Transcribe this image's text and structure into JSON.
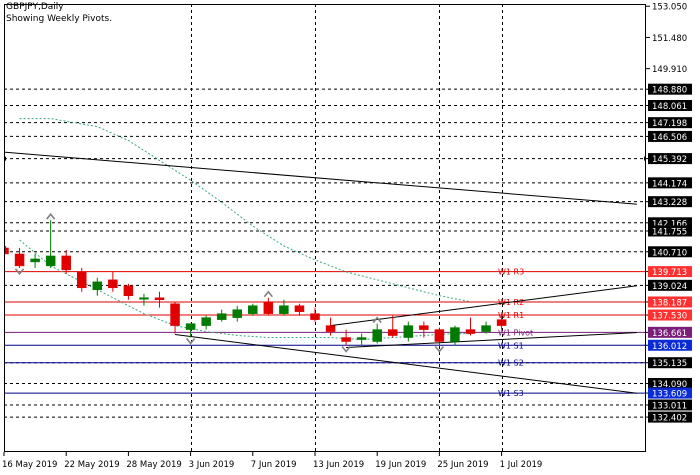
{
  "header": {
    "symbol_line": "GBPJPY,Daily",
    "indicator_line": "Showing Weekly Pivots."
  },
  "colors": {
    "resistance": "#e00000",
    "resistance_fill": "#ff3030",
    "support": "#000088",
    "support_fill": "#0a2bd6",
    "pivot_fill": "#7a1e7a",
    "bull_candle": "#007a00",
    "bear_candle": "#e00000",
    "grid": "#000000",
    "ma_line": "#3aa87a",
    "channel": "#000000",
    "fractal": "#808080"
  },
  "chart_data": {
    "type": "candlestick",
    "symbol": "GBPJPY",
    "timeframe": "Daily",
    "ylim": [
      131.9,
      153.05
    ],
    "y_ticks": [
      153.05,
      151.48,
      149.91,
      148.88,
      148.061,
      147.198,
      146.506,
      145.392,
      144.174,
      143.228,
      142.166,
      141.755,
      140.71,
      139.024,
      137.53,
      136.012,
      135.135,
      134.09,
      133.011,
      132.402
    ],
    "y_labels": [
      {
        "text": "153.050",
        "value": 153.05,
        "style": "plain"
      },
      {
        "text": "151.480",
        "value": 151.48,
        "style": "plain"
      },
      {
        "text": "149.910",
        "value": 149.91,
        "style": "plain"
      },
      {
        "text": "148.880",
        "value": 148.88,
        "style": "black"
      },
      {
        "text": "148.061",
        "value": 148.061,
        "style": "black"
      },
      {
        "text": "147.198",
        "value": 147.198,
        "style": "black"
      },
      {
        "text": "146.506",
        "value": 146.506,
        "style": "black"
      },
      {
        "text": "145.392",
        "value": 145.392,
        "style": "black"
      },
      {
        "text": "144.174",
        "value": 144.174,
        "style": "black"
      },
      {
        "text": "143.228",
        "value": 143.228,
        "style": "black"
      },
      {
        "text": "142.166",
        "value": 142.166,
        "style": "black"
      },
      {
        "text": "141.755",
        "value": 141.755,
        "style": "black"
      },
      {
        "text": "140.710",
        "value": 140.71,
        "style": "black"
      },
      {
        "text": "139.713",
        "value": 139.713,
        "style": "red"
      },
      {
        "text": "139.024",
        "value": 139.024,
        "style": "black"
      },
      {
        "text": "138.187",
        "value": 138.187,
        "style": "red"
      },
      {
        "text": "137.530",
        "value": 137.53,
        "style": "red"
      },
      {
        "text": "136.661",
        "value": 136.661,
        "style": "purple"
      },
      {
        "text": "136.012",
        "value": 136.012,
        "style": "blue"
      },
      {
        "text": "135.135",
        "value": 135.135,
        "style": "black"
      },
      {
        "text": "134.090",
        "value": 134.09,
        "style": "black"
      },
      {
        "text": "133.609",
        "value": 133.609,
        "style": "blue"
      },
      {
        "text": "133.011",
        "value": 133.011,
        "style": "black"
      },
      {
        "text": "132.402",
        "value": 132.402,
        "style": "black"
      }
    ],
    "dotted_levels": [
      148.88,
      148.061,
      147.198,
      146.506,
      145.392,
      144.174,
      143.228,
      142.166,
      141.755,
      140.71,
      139.024,
      135.135,
      134.09,
      133.011,
      132.402
    ],
    "pivots": [
      {
        "label": "W1 R3",
        "value": 139.713,
        "kind": "resistance"
      },
      {
        "label": "W1 R2",
        "value": 138.187,
        "kind": "resistance"
      },
      {
        "label": "W1 R1",
        "value": 137.53,
        "kind": "resistance"
      },
      {
        "label": "W1 Pivot",
        "value": 136.661,
        "kind": "pivot"
      },
      {
        "label": "W1 S1",
        "value": 136.012,
        "kind": "support"
      },
      {
        "label": "W1 S2",
        "value": 135.135,
        "kind": "support"
      },
      {
        "label": "W1 S3",
        "value": 133.609,
        "kind": "support"
      }
    ],
    "x_labels": [
      "16 May 2019",
      "22 May 2019",
      "28 May 2019",
      "3 Jun 2019",
      "7 Jun 2019",
      "13 Jun 2019",
      "19 Jun 2019",
      "25 Jun 2019",
      "1 Jul 2019"
    ],
    "x_label_bars": [
      0,
      4,
      8,
      12,
      16,
      20,
      24,
      28,
      32
    ],
    "vgrid_bars": [
      12,
      20,
      28,
      32
    ],
    "candles": [
      {
        "o": 140.9,
        "h": 141.0,
        "l": 140.3,
        "c": 140.6
      },
      {
        "o": 140.6,
        "h": 140.9,
        "l": 139.9,
        "c": 140.0
      },
      {
        "o": 140.2,
        "h": 140.6,
        "l": 139.9,
        "c": 140.35
      },
      {
        "o": 140.0,
        "h": 142.3,
        "l": 139.9,
        "c": 140.5
      },
      {
        "o": 140.5,
        "h": 140.8,
        "l": 139.6,
        "c": 139.8
      },
      {
        "o": 139.7,
        "h": 139.9,
        "l": 138.7,
        "c": 138.9
      },
      {
        "o": 138.8,
        "h": 139.4,
        "l": 138.5,
        "c": 139.2
      },
      {
        "o": 139.3,
        "h": 139.7,
        "l": 138.7,
        "c": 138.9
      },
      {
        "o": 139.0,
        "h": 139.1,
        "l": 138.3,
        "c": 138.5
      },
      {
        "o": 138.4,
        "h": 138.6,
        "l": 138.0,
        "c": 138.4
      },
      {
        "o": 138.4,
        "h": 138.7,
        "l": 137.9,
        "c": 138.3
      },
      {
        "o": 138.1,
        "h": 138.2,
        "l": 136.6,
        "c": 137.0
      },
      {
        "o": 136.8,
        "h": 137.0,
        "l": 136.4,
        "c": 137.1
      },
      {
        "o": 137.0,
        "h": 137.5,
        "l": 136.8,
        "c": 137.4
      },
      {
        "o": 137.3,
        "h": 137.8,
        "l": 137.2,
        "c": 137.6
      },
      {
        "o": 137.4,
        "h": 138.0,
        "l": 137.2,
        "c": 137.8
      },
      {
        "o": 137.6,
        "h": 138.1,
        "l": 137.5,
        "c": 138.0
      },
      {
        "o": 138.2,
        "h": 138.4,
        "l": 137.5,
        "c": 137.6
      },
      {
        "o": 137.6,
        "h": 138.3,
        "l": 137.5,
        "c": 138.0
      },
      {
        "o": 138.0,
        "h": 138.1,
        "l": 137.5,
        "c": 137.7
      },
      {
        "o": 137.6,
        "h": 137.9,
        "l": 137.2,
        "c": 137.3
      },
      {
        "o": 137.0,
        "h": 137.4,
        "l": 136.5,
        "c": 136.7
      },
      {
        "o": 136.4,
        "h": 136.8,
        "l": 136.0,
        "c": 136.2
      },
      {
        "o": 136.3,
        "h": 136.6,
        "l": 136.0,
        "c": 136.4
      },
      {
        "o": 136.2,
        "h": 137.1,
        "l": 136.1,
        "c": 136.8
      },
      {
        "o": 136.8,
        "h": 137.5,
        "l": 136.4,
        "c": 136.5
      },
      {
        "o": 136.4,
        "h": 137.2,
        "l": 136.2,
        "c": 137.0
      },
      {
        "o": 137.0,
        "h": 137.2,
        "l": 136.4,
        "c": 136.8
      },
      {
        "o": 136.8,
        "h": 136.9,
        "l": 136.0,
        "c": 136.2
      },
      {
        "o": 136.2,
        "h": 137.0,
        "l": 136.0,
        "c": 136.9
      },
      {
        "o": 136.8,
        "h": 137.4,
        "l": 136.5,
        "c": 136.6
      },
      {
        "o": 136.7,
        "h": 137.2,
        "l": 136.6,
        "c": 137.0
      },
      {
        "o": 137.3,
        "h": 137.6,
        "l": 136.8,
        "c": 137.0
      }
    ],
    "regression_line": {
      "from": {
        "bar": -0.5,
        "value": 145.75
      },
      "to": {
        "bar": 40.7,
        "value": 143.1
      }
    },
    "channel_upper": {
      "from": {
        "bar": 21,
        "value": 137.0
      },
      "to": {
        "bar": 40.7,
        "value": 139.0
      }
    },
    "channel_lower": {
      "from": {
        "bar": 11,
        "value": 136.55
      },
      "to": {
        "bar": 40.7,
        "value": 133.6
      }
    },
    "channel_lower_short": {
      "from": {
        "bar": 22,
        "value": 135.9
      },
      "to": {
        "bar": 40.7,
        "value": 136.65
      }
    },
    "ma_upper": [
      [
        1,
        147.4
      ],
      [
        3,
        147.4
      ],
      [
        6,
        147.0
      ],
      [
        8,
        146.3
      ],
      [
        10,
        145.3
      ],
      [
        12,
        144.3
      ],
      [
        14,
        143.2
      ],
      [
        16,
        142.0
      ],
      [
        18,
        141.0
      ],
      [
        20,
        140.3
      ],
      [
        22,
        139.7
      ],
      [
        24,
        139.3
      ],
      [
        26,
        138.9
      ],
      [
        28,
        138.5
      ],
      [
        30,
        138.2
      ]
    ],
    "ma_lower": [
      [
        1,
        141.3
      ],
      [
        3,
        140.0
      ],
      [
        5,
        139.2
      ],
      [
        7,
        138.4
      ],
      [
        9,
        137.6
      ],
      [
        11,
        137.0
      ],
      [
        13,
        136.7
      ],
      [
        15,
        136.5
      ],
      [
        17,
        136.4
      ],
      [
        19,
        136.4
      ],
      [
        21,
        136.4
      ],
      [
        23,
        136.3
      ],
      [
        25,
        136.4
      ],
      [
        27,
        136.5
      ],
      [
        29,
        136.6
      ],
      [
        30,
        136.6
      ]
    ],
    "fractals": [
      {
        "bar": 1,
        "value": 139.7,
        "dir": "down"
      },
      {
        "bar": 3,
        "value": 142.5,
        "dir": "up"
      },
      {
        "bar": 12,
        "value": 136.2,
        "dir": "down"
      },
      {
        "bar": 17,
        "value": 138.6,
        "dir": "up"
      },
      {
        "bar": 22,
        "value": 135.8,
        "dir": "down"
      },
      {
        "bar": 24,
        "value": 137.3,
        "dir": "up"
      },
      {
        "bar": 28,
        "value": 135.8,
        "dir": "down"
      }
    ],
    "markers": [
      {
        "value": 140.9,
        "side": "left"
      },
      {
        "value": 145.392,
        "side": "left"
      },
      {
        "value": 145.392,
        "side": "right"
      }
    ]
  }
}
